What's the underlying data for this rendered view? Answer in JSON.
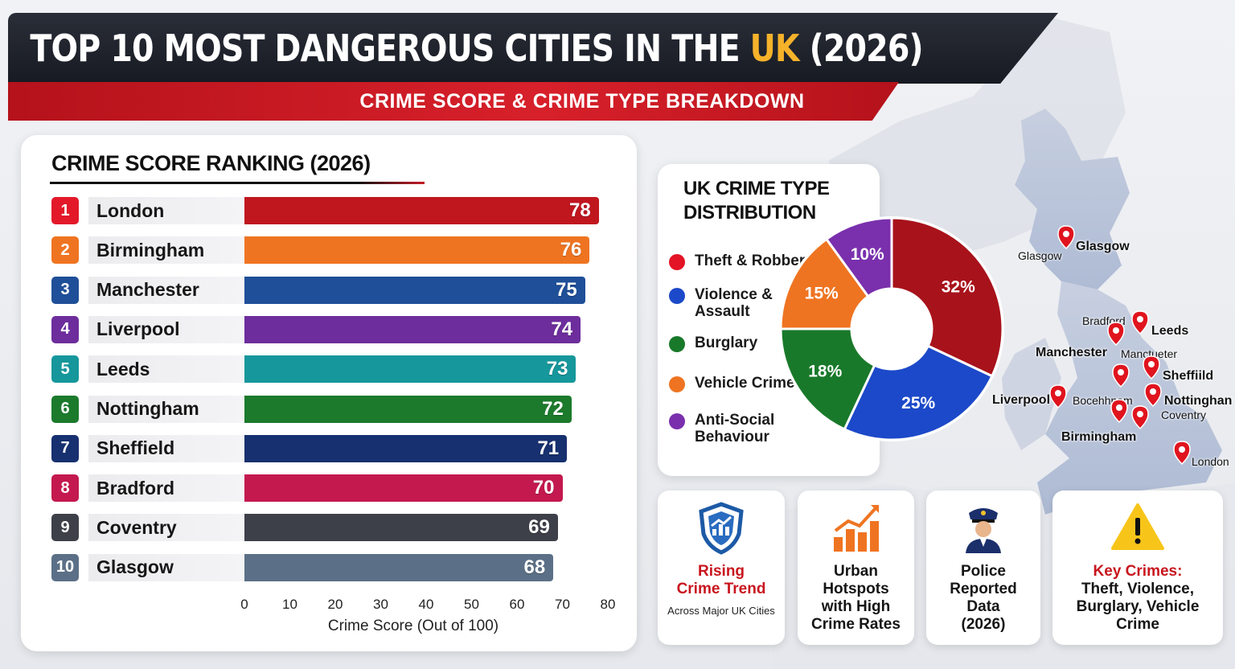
{
  "header": {
    "title_main": "TOP 10 MOST DANGEROUS CITIES IN THE ",
    "title_accent": "UK",
    "title_end": " (2026)",
    "subtitle": "CRIME SCORE & CRIME TYPE BREAKDOWN",
    "accent_color": "#f5b22a"
  },
  "chart_data": [
    {
      "type": "bar",
      "orientation": "horizontal",
      "title": "CRIME SCORE RANKING  (2026)",
      "xlabel": "Crime Score (Out of 100)",
      "xlim": [
        0,
        80
      ],
      "xticks": [
        "0",
        "10",
        "20",
        "30",
        "40",
        "50",
        "60",
        "70",
        "80"
      ],
      "categories": [
        "London",
        "Birmingham",
        "Manchester",
        "Liverpool",
        "Leeds",
        "Nottingham",
        "Sheffield",
        "Bradford",
        "Coventry",
        "Glasgow"
      ],
      "ranks": [
        "1",
        "2",
        "3",
        "4",
        "5",
        "6",
        "7",
        "8",
        "9",
        "10"
      ],
      "values": [
        78,
        76,
        75,
        74,
        73,
        72,
        71,
        70,
        69,
        68
      ],
      "value_labels": [
        "78",
        "76",
        "75",
        "74",
        "73",
        "72",
        "71",
        "70",
        "69",
        "68"
      ],
      "colors": [
        "#c0171f",
        "#ef7421",
        "#1f4f98",
        "#6d2d9c",
        "#16979b",
        "#1c7a2c",
        "#17306f",
        "#c3194f",
        "#3d4049",
        "#5b7087"
      ],
      "badge_colors": [
        "#e3192a",
        "#ef7421",
        "#1f4f98",
        "#6d2d9c",
        "#16979b",
        "#1c7a2c",
        "#17306f",
        "#c3194f",
        "#3d4049",
        "#5b7087"
      ],
      "grid": false
    },
    {
      "type": "pie",
      "donut": true,
      "title": "UK CRIME TYPE DISTRIBUTION",
      "categories": [
        "Theft & Robbery",
        "Violence & Assault",
        "Burglary",
        "Vehicle Crime",
        "Anti-Social Behaviour"
      ],
      "values": [
        32,
        25,
        18,
        15,
        10
      ],
      "value_labels": [
        "32%",
        "25%",
        "18%",
        "15%",
        "10%"
      ],
      "slice_colors": [
        "#a8121b",
        "#1c49c9",
        "#19792a",
        "#ef7421",
        "#7a30ad"
      ],
      "legend_colors": [
        "#e31425",
        "#1c49c9",
        "#19792a",
        "#ef7421",
        "#7a30ad"
      ],
      "legend_placement": "left"
    }
  ],
  "stats": [
    {
      "lines": [
        "Rising",
        "Crime Trend"
      ],
      "red": true,
      "small": "Across Major UK Cities",
      "icon": "shield-chart-icon"
    },
    {
      "lines": [
        "Urban",
        "Hotspots",
        "with High",
        "Crime Rates"
      ],
      "red": false,
      "small": "",
      "icon": "bar-growth-icon"
    },
    {
      "lines": [
        "Police",
        "Reported",
        "Data",
        "(2026)"
      ],
      "red": false,
      "small": "",
      "icon": "police-officer-icon"
    },
    {
      "lines": [
        "Key Crimes:"
      ],
      "sub": [
        "Theft, Violence,",
        "Burglary, Vehicle",
        "Crime"
      ],
      "red": true,
      "small": "",
      "icon": "warning-icon"
    }
  ],
  "map": {
    "labels": [
      "Glasgow",
      "Glasgow",
      "Bradford",
      "Leeds",
      "Manchester",
      "Manctueter",
      "Sheffiild",
      "Liverpool",
      "Bocehhnam",
      "Nottinghan",
      "Coventry",
      "Birmingham",
      "London"
    ],
    "land_color": "#b8c3d8"
  }
}
